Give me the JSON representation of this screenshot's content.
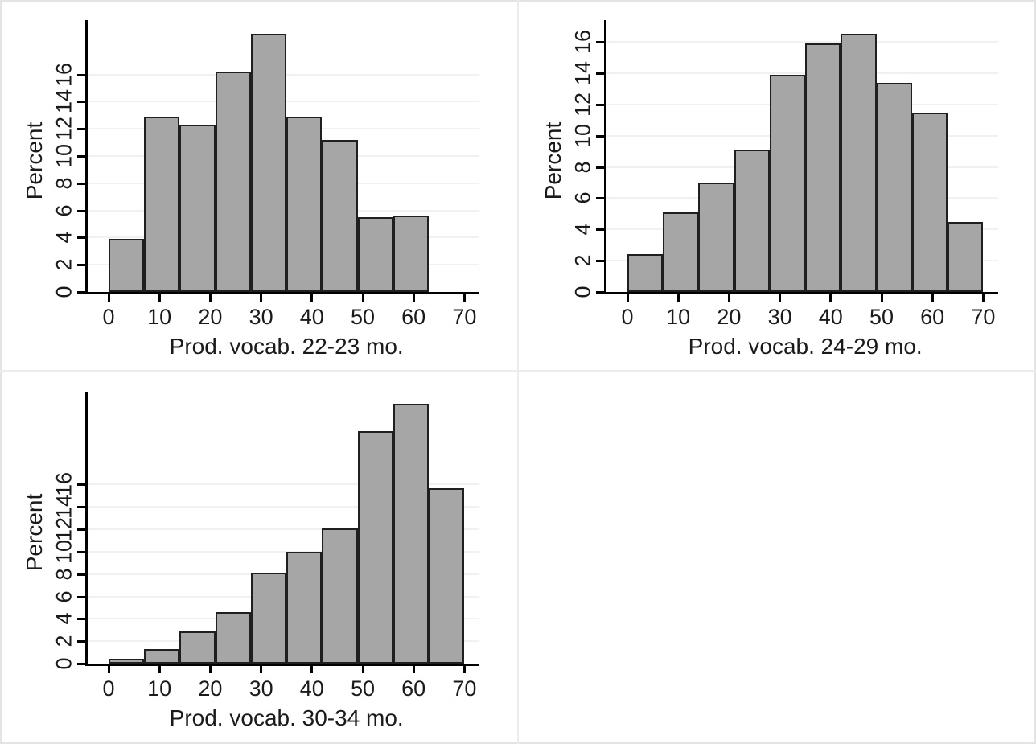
{
  "figure": {
    "background": "#ffffff",
    "outer_border_color": "#e4e4e4",
    "separator_color": "#ececec",
    "bar_fill": "#a6a6a6",
    "bar_outline": "#1f1f1f",
    "axis_color": "#000000",
    "grid_color": "#f1f1f1",
    "text_color": "#1a1a1a"
  },
  "chart_data": [
    {
      "type": "bar",
      "subtype": "histogram",
      "position": "top-left",
      "xlabel": "Prod. vocab. 22-23 mo.",
      "ylabel": "Percent",
      "bin_start": 0,
      "bin_width": 7,
      "values": [
        3.9,
        12.9,
        12.3,
        16.2,
        19.0,
        12.9,
        11.2,
        5.5,
        5.6
      ],
      "x_ticks": [
        0,
        10,
        20,
        30,
        40,
        50,
        60,
        70
      ],
      "y_ticks": [
        0,
        2,
        4,
        6,
        8,
        10,
        12,
        14,
        16
      ],
      "xlim": [
        0,
        73
      ],
      "ylim": [
        0,
        20
      ],
      "grid": true,
      "legend": "none"
    },
    {
      "type": "bar",
      "subtype": "histogram",
      "position": "top-right",
      "xlabel": "Prod. vocab. 24-29 mo.",
      "ylabel": "Percent",
      "bin_start": 0,
      "bin_width": 7,
      "values": [
        2.4,
        5.1,
        7.0,
        9.1,
        13.9,
        15.9,
        16.5,
        13.4,
        11.5,
        4.5
      ],
      "x_ticks": [
        0,
        10,
        20,
        30,
        40,
        50,
        60,
        70
      ],
      "y_ticks": [
        0,
        2,
        4,
        6,
        8,
        10,
        12,
        14,
        16
      ],
      "xlim": [
        0,
        73
      ],
      "ylim": [
        0,
        17.4
      ],
      "grid": true,
      "legend": "none"
    },
    {
      "type": "bar",
      "subtype": "histogram",
      "position": "bottom-left",
      "xlabel": "Prod. vocab. 30-34 mo.",
      "ylabel": "Percent",
      "bin_start": 0,
      "bin_width": 7,
      "values": [
        0.4,
        1.3,
        2.9,
        4.6,
        8.1,
        10.0,
        12.1,
        20.8,
        23.2,
        15.7
      ],
      "x_ticks": [
        0,
        10,
        20,
        30,
        40,
        50,
        60,
        70
      ],
      "y_ticks": [
        0,
        2,
        4,
        6,
        8,
        10,
        12,
        14,
        16
      ],
      "xlim": [
        0,
        73
      ],
      "ylim": [
        0,
        24.3
      ],
      "grid": true,
      "legend": "none"
    }
  ]
}
